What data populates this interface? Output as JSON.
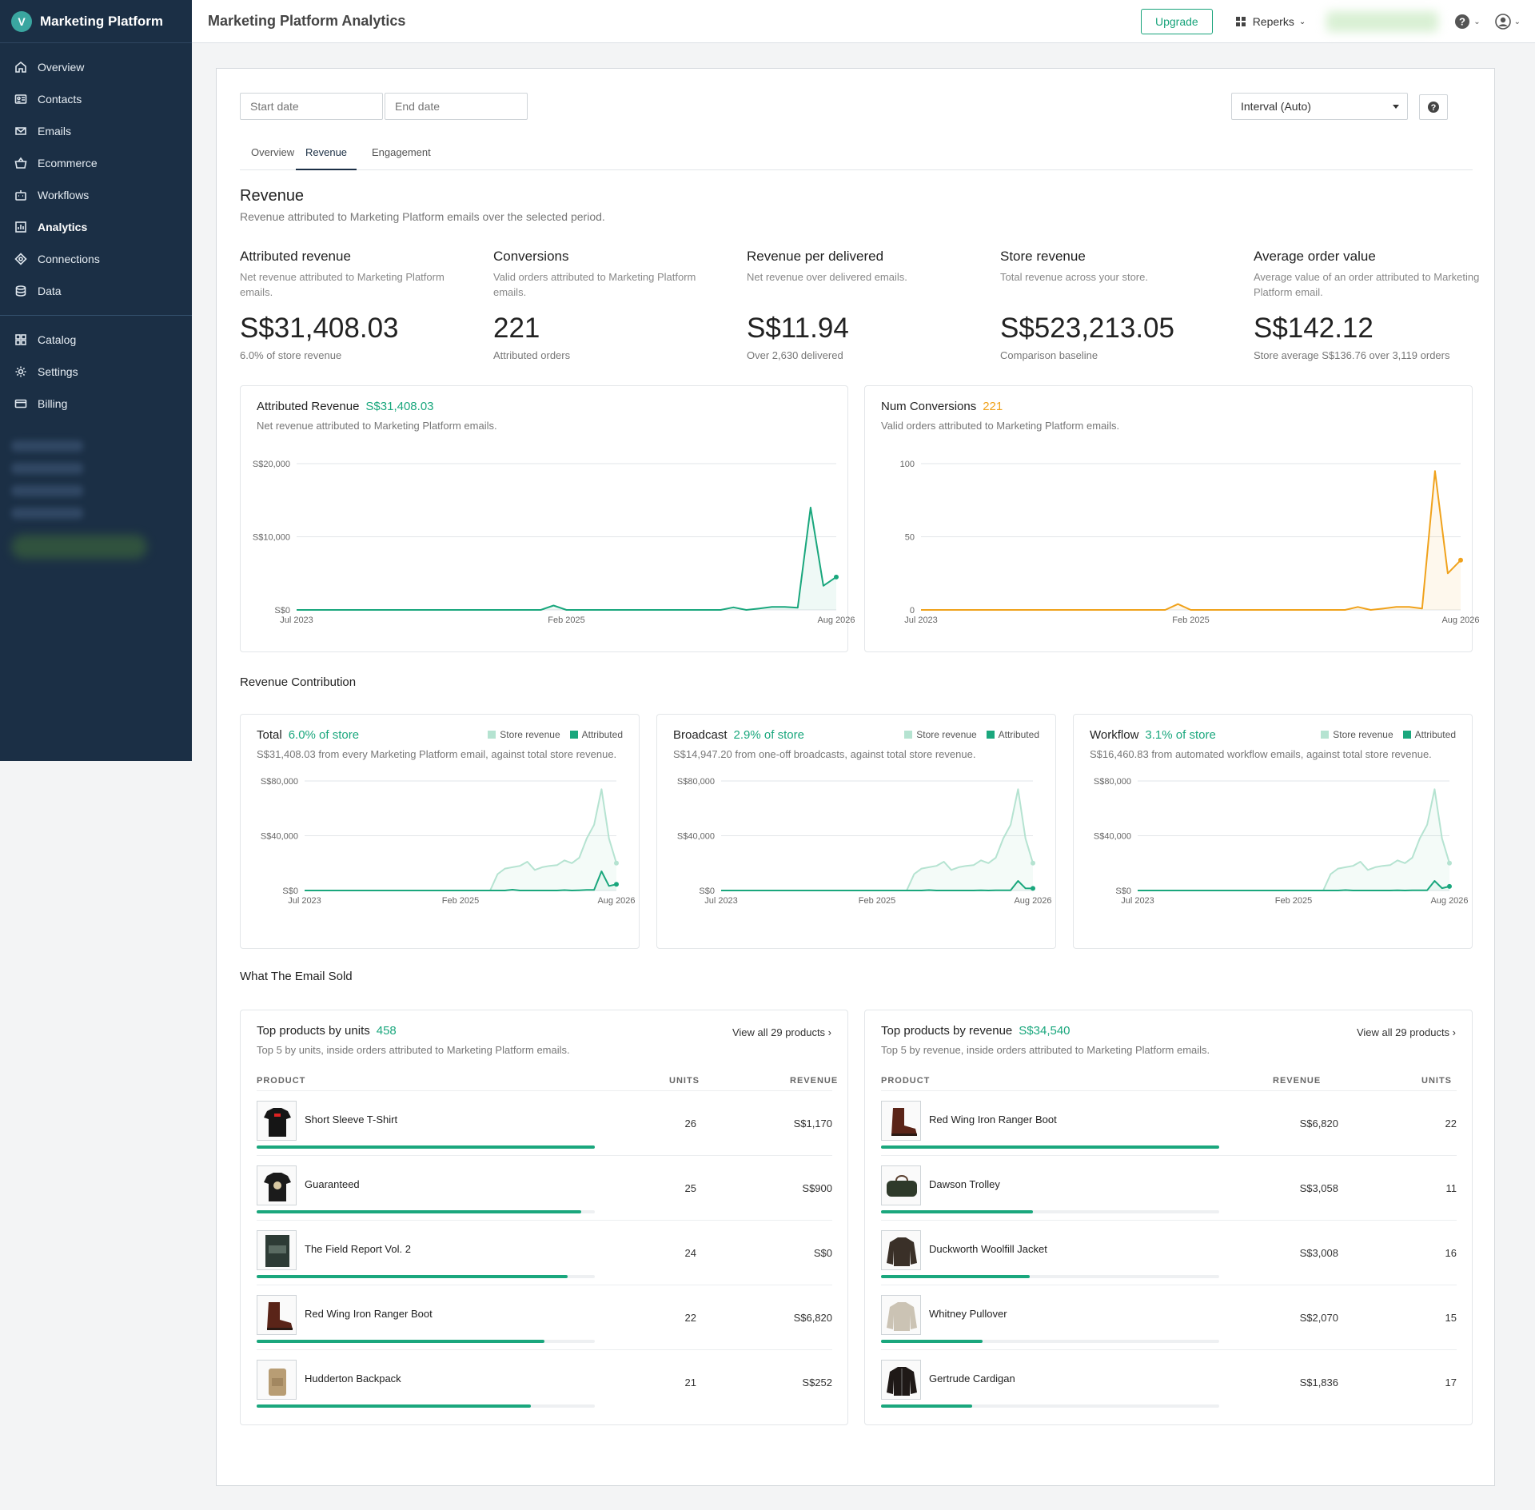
{
  "sidebar": {
    "brand": "Marketing Platform",
    "brand_initial": "V",
    "items": [
      {
        "label": "Overview",
        "icon": "home-icon"
      },
      {
        "label": "Contacts",
        "icon": "contacts-icon"
      },
      {
        "label": "Emails",
        "icon": "email-icon"
      },
      {
        "label": "Ecommerce",
        "icon": "basket-icon"
      },
      {
        "label": "Workflows",
        "icon": "workflow-icon"
      },
      {
        "label": "Analytics",
        "icon": "chart-icon"
      },
      {
        "label": "Connections",
        "icon": "connection-icon"
      },
      {
        "label": "Data",
        "icon": "database-icon"
      }
    ],
    "items2": [
      {
        "label": "Catalog",
        "icon": "grid-icon"
      },
      {
        "label": "Settings",
        "icon": "gear-icon"
      },
      {
        "label": "Billing",
        "icon": "card-icon"
      }
    ]
  },
  "topbar": {
    "title": "Marketing Platform Analytics",
    "upgrade": "Upgrade",
    "account": "Reperks"
  },
  "filters": {
    "start_placeholder": "Start date",
    "end_placeholder": "End date",
    "interval": "Interval (Auto)",
    "help": "?"
  },
  "tabs": [
    "Overview",
    "Revenue",
    "Engagement"
  ],
  "revenue": {
    "title": "Revenue",
    "subtitle": "Revenue attributed to Marketing Platform emails over the selected period."
  },
  "kpis": [
    {
      "title": "Attributed revenue",
      "desc": "Net revenue attributed to Marketing Platform emails.",
      "value": "S$31,408.03",
      "note": "6.0% of store revenue"
    },
    {
      "title": "Conversions",
      "desc": "Valid orders attributed to Marketing Platform emails.",
      "value": "221",
      "note": "Attributed orders"
    },
    {
      "title": "Revenue per delivered",
      "desc": "Net revenue over delivered emails.",
      "value": "S$11.94",
      "note": "Over 2,630 delivered"
    },
    {
      "title": "Store revenue",
      "desc": "Total revenue across your store.",
      "value": "S$523,213.05",
      "note": "Comparison baseline"
    },
    {
      "title": "Average order value",
      "desc": "Average value of an order attributed to Marketing Platform email.",
      "value": "S$142.12",
      "note": "Store average S$136.76 over 3,119 orders"
    }
  ],
  "charts_main": {
    "revenue": {
      "title": "Attributed Revenue",
      "value": "S$31,408.03",
      "desc": "Net revenue attributed to Marketing Platform emails.",
      "color": "#1aa77d"
    },
    "conversions": {
      "title": "Num Conversions",
      "value": "221",
      "desc": "Valid orders attributed to Marketing Platform emails.",
      "color": "#f0a21c"
    }
  },
  "contribution": {
    "heading": "Revenue Contribution",
    "legend_store": "Store revenue",
    "legend_attr": "Attributed",
    "panels": [
      {
        "title": "Total",
        "pct": "6.0% of store",
        "desc": "S$31,408.03 from every Marketing Platform email, against total store revenue."
      },
      {
        "title": "Broadcast",
        "pct": "2.9% of store",
        "desc": "S$14,947.20 from one-off broadcasts, against total store revenue."
      },
      {
        "title": "Workflow",
        "pct": "3.1% of store",
        "desc": "S$16,460.83 from automated workflow emails, against total store revenue."
      }
    ]
  },
  "sold": {
    "heading": "What The Email Sold",
    "by_units": {
      "title": "Top products by units",
      "value": "458",
      "view_all": "View all 29 products ›",
      "desc": "Top 5 by units, inside orders attributed to Marketing Platform emails.",
      "headers": [
        "PRODUCT",
        "UNITS",
        "REVENUE"
      ],
      "rows": [
        {
          "name": "Short Sleeve T-Shirt",
          "units": "26",
          "revenue": "S$1,170",
          "share": 1.0,
          "thumb": "tshirt"
        },
        {
          "name": "Guaranteed",
          "units": "25",
          "revenue": "S$900",
          "share": 0.96,
          "thumb": "tshirt2"
        },
        {
          "name": "The Field Report Vol. 2",
          "units": "24",
          "revenue": "S$0",
          "share": 0.92,
          "thumb": "book"
        },
        {
          "name": "Red Wing Iron Ranger Boot",
          "units": "22",
          "revenue": "S$6,820",
          "share": 0.85,
          "thumb": "boot"
        },
        {
          "name": "Hudderton Backpack",
          "units": "21",
          "revenue": "S$252",
          "share": 0.81,
          "thumb": "backpack"
        }
      ]
    },
    "by_revenue": {
      "title": "Top products by revenue",
      "value": "S$34,540",
      "view_all": "View all 29 products ›",
      "desc": "Top 5 by revenue, inside orders attributed to Marketing Platform emails.",
      "headers": [
        "PRODUCT",
        "REVENUE",
        "UNITS"
      ],
      "rows": [
        {
          "name": "Red Wing Iron Ranger Boot",
          "revenue": "S$6,820",
          "units": "22",
          "share": 1.0,
          "thumb": "boot"
        },
        {
          "name": "Dawson Trolley",
          "revenue": "S$3,058",
          "units": "11",
          "share": 0.45,
          "thumb": "bag"
        },
        {
          "name": "Duckworth Woolfill Jacket",
          "revenue": "S$3,008",
          "units": "16",
          "share": 0.44,
          "thumb": "jacket"
        },
        {
          "name": "Whitney Pullover",
          "revenue": "S$2,070",
          "units": "15",
          "share": 0.3,
          "thumb": "pullover"
        },
        {
          "name": "Gertrude Cardigan",
          "revenue": "S$1,836",
          "units": "17",
          "share": 0.27,
          "thumb": "cardigan"
        }
      ]
    }
  },
  "chart_data": [
    {
      "type": "area",
      "title": "Attributed Revenue",
      "x_ticks": [
        "Jul 2023",
        "Feb 2025",
        "Aug 2026"
      ],
      "y_ticks": [
        "S$0",
        "S$10,000",
        "S$20,000"
      ],
      "ylim": [
        0,
        20000
      ],
      "series": [
        {
          "name": "Attributed Revenue",
          "values": [
            0,
            0,
            0,
            0,
            0,
            0,
            0,
            0,
            0,
            0,
            0,
            0,
            0,
            0,
            0,
            0,
            0,
            0,
            0,
            0,
            600,
            0,
            0,
            0,
            0,
            0,
            0,
            0,
            0,
            0,
            0,
            0,
            0,
            0,
            350,
            0,
            200,
            400,
            400,
            300,
            14000,
            3300,
            4500
          ]
        }
      ]
    },
    {
      "type": "area",
      "title": "Num Conversions",
      "x_ticks": [
        "Jul 2023",
        "Feb 2025",
        "Aug 2026"
      ],
      "y_ticks": [
        "0",
        "50",
        "100"
      ],
      "ylim": [
        0,
        100
      ],
      "series": [
        {
          "name": "Num Conversions",
          "values": [
            0,
            0,
            0,
            0,
            0,
            0,
            0,
            0,
            0,
            0,
            0,
            0,
            0,
            0,
            0,
            0,
            0,
            0,
            0,
            0,
            4,
            0,
            0,
            0,
            0,
            0,
            0,
            0,
            0,
            0,
            0,
            0,
            0,
            0,
            2,
            0,
            1,
            2,
            2,
            1,
            95,
            25,
            34
          ]
        }
      ]
    },
    {
      "type": "area",
      "title": "Total",
      "x_ticks": [
        "Jul 2023",
        "Feb 2025",
        "Aug 2026"
      ],
      "y_ticks": [
        "S$0",
        "S$40,000",
        "S$80,000"
      ],
      "ylim": [
        0,
        80000
      ],
      "series": [
        {
          "name": "Store revenue",
          "values": [
            0,
            0,
            0,
            0,
            0,
            0,
            0,
            0,
            0,
            0,
            0,
            0,
            0,
            0,
            0,
            0,
            0,
            0,
            0,
            0,
            0,
            0,
            0,
            0,
            0,
            0,
            12000,
            16000,
            17000,
            18000,
            21000,
            15000,
            17000,
            18000,
            18500,
            22000,
            20000,
            24000,
            38000,
            48000,
            74000,
            38000,
            20000
          ]
        },
        {
          "name": "Attributed",
          "values": [
            0,
            0,
            0,
            0,
            0,
            0,
            0,
            0,
            0,
            0,
            0,
            0,
            0,
            0,
            0,
            0,
            0,
            0,
            0,
            0,
            0,
            0,
            0,
            0,
            0,
            0,
            0,
            0,
            600,
            0,
            0,
            0,
            0,
            0,
            0,
            300,
            0,
            200,
            400,
            400,
            14000,
            3300,
            4500
          ]
        }
      ]
    },
    {
      "type": "area",
      "title": "Broadcast",
      "x_ticks": [
        "Jul 2023",
        "Feb 2025",
        "Aug 2026"
      ],
      "y_ticks": [
        "S$0",
        "S$40,000",
        "S$80,000"
      ],
      "ylim": [
        0,
        80000
      ],
      "series": [
        {
          "name": "Store revenue",
          "values": [
            0,
            0,
            0,
            0,
            0,
            0,
            0,
            0,
            0,
            0,
            0,
            0,
            0,
            0,
            0,
            0,
            0,
            0,
            0,
            0,
            0,
            0,
            0,
            0,
            0,
            0,
            12000,
            16000,
            17000,
            18000,
            21000,
            15000,
            17000,
            18000,
            18500,
            22000,
            20000,
            24000,
            38000,
            48000,
            74000,
            38000,
            20000
          ]
        },
        {
          "name": "Attributed",
          "values": [
            0,
            0,
            0,
            0,
            0,
            0,
            0,
            0,
            0,
            0,
            0,
            0,
            0,
            0,
            0,
            0,
            0,
            0,
            0,
            0,
            0,
            0,
            0,
            0,
            0,
            0,
            0,
            0,
            300,
            0,
            0,
            0,
            0,
            0,
            0,
            150,
            0,
            100,
            200,
            200,
            7000,
            1600,
            1500
          ]
        }
      ]
    },
    {
      "type": "area",
      "title": "Workflow",
      "x_ticks": [
        "Jul 2023",
        "Feb 2025",
        "Aug 2026"
      ],
      "y_ticks": [
        "S$0",
        "S$40,000",
        "S$80,000"
      ],
      "ylim": [
        0,
        80000
      ],
      "series": [
        {
          "name": "Store revenue",
          "values": [
            0,
            0,
            0,
            0,
            0,
            0,
            0,
            0,
            0,
            0,
            0,
            0,
            0,
            0,
            0,
            0,
            0,
            0,
            0,
            0,
            0,
            0,
            0,
            0,
            0,
            0,
            12000,
            16000,
            17000,
            18000,
            21000,
            15000,
            17000,
            18000,
            18500,
            22000,
            20000,
            24000,
            38000,
            48000,
            74000,
            38000,
            20000
          ]
        },
        {
          "name": "Attributed",
          "values": [
            0,
            0,
            0,
            0,
            0,
            0,
            0,
            0,
            0,
            0,
            0,
            0,
            0,
            0,
            0,
            0,
            0,
            0,
            0,
            0,
            0,
            0,
            0,
            0,
            0,
            0,
            0,
            0,
            300,
            0,
            0,
            0,
            0,
            0,
            0,
            150,
            0,
            100,
            200,
            200,
            7000,
            1700,
            3000
          ]
        }
      ]
    }
  ],
  "colors": {
    "accent": "#1aa77d",
    "orange": "#f0a21c",
    "light_green": "#b5e3d1",
    "sidebar": "#1b2f45"
  }
}
